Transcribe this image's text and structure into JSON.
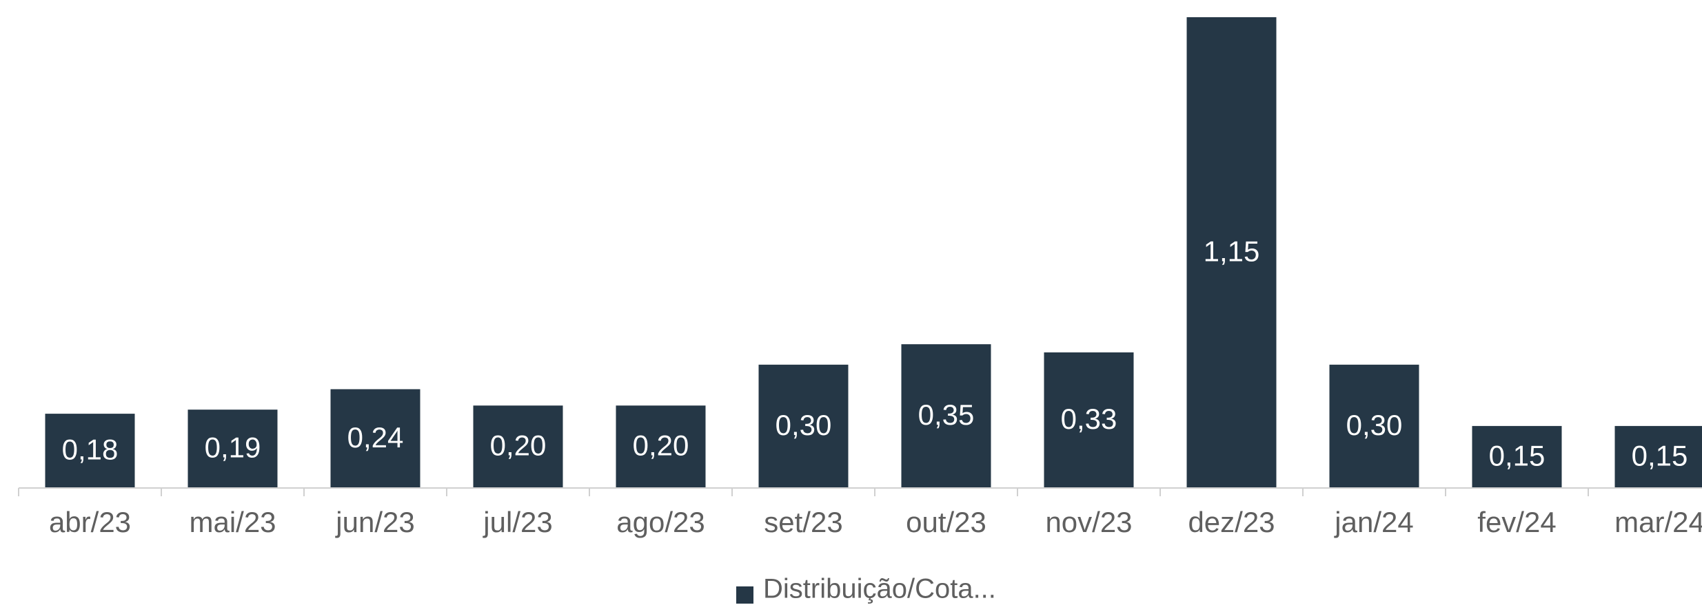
{
  "chart_data": {
    "type": "bar",
    "categories": [
      "abr/23",
      "mai/23",
      "jun/23",
      "jul/23",
      "ago/23",
      "set/23",
      "out/23",
      "nov/23",
      "dez/23",
      "jan/24",
      "fev/24",
      "mar/24"
    ],
    "series": [
      {
        "name": "Distribuição/Cota...",
        "color": "#253746",
        "values": [
          0.18,
          0.19,
          0.24,
          0.2,
          0.2,
          0.3,
          0.35,
          0.33,
          1.15,
          0.3,
          0.15,
          0.15
        ],
        "value_labels": [
          "0,18",
          "0,19",
          "0,24",
          "0,20",
          "0,20",
          "0,30",
          "0,35",
          "0,33",
          "1,15",
          "0,30",
          "0,15",
          "0,15"
        ]
      }
    ],
    "legend": "bottom"
  }
}
